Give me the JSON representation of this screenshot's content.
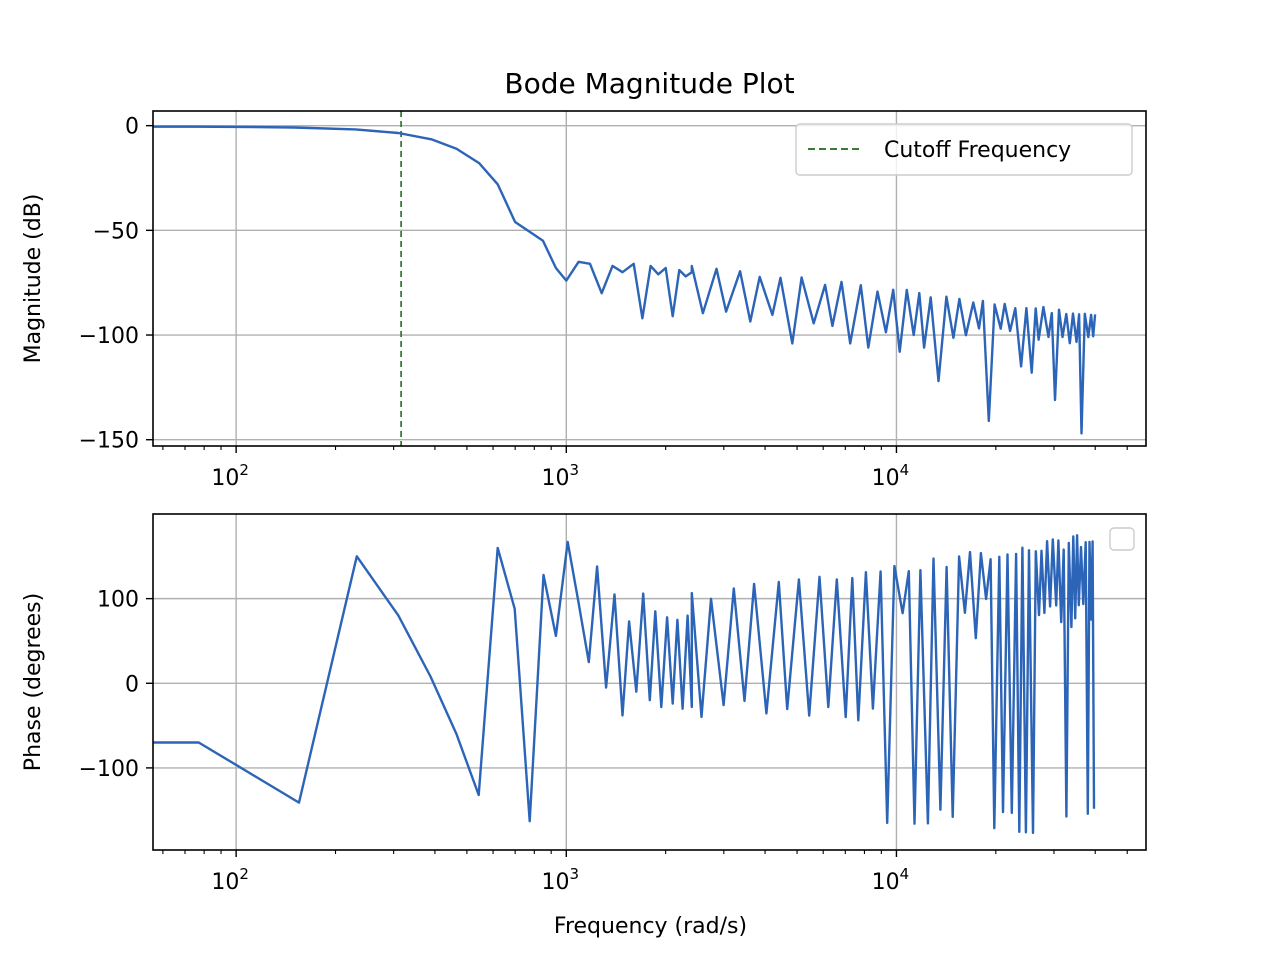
{
  "colors": {
    "series": "#2c64b7",
    "cutoff": "#3c7a3c",
    "grid": "#b0b0b0",
    "axes": "#000000"
  },
  "chart_data": [
    {
      "type": "line",
      "title": "Bode Magnitude Plot",
      "xlabel": "",
      "ylabel": "Magnitude (dB)",
      "xscale": "log",
      "xlim": [
        56,
        57000
      ],
      "ylim": [
        -153,
        7
      ],
      "yticks": [
        0,
        -50,
        -100,
        -150
      ],
      "ytick_labels": [
        "0",
        "−50",
        "−100",
        "−150"
      ],
      "xticks": [
        100,
        1000,
        10000
      ],
      "xtick_labels": [
        {
          "base": "10",
          "exp": "2"
        },
        {
          "base": "10",
          "exp": "3"
        },
        {
          "base": "10",
          "exp": "4"
        }
      ],
      "grid": true,
      "legend": {
        "placement": "upper right",
        "entries": [
          "Cutoff Frequency"
        ]
      },
      "cutoff_frequency": 316,
      "series": [
        {
          "x": [
            56,
            75,
            100,
            150,
            230,
            310,
            390,
            465,
            545,
            620,
            700,
            850,
            930,
            1000,
            1090,
            1180,
            1280,
            1380,
            1480,
            1600,
            1700,
            1800,
            1900,
            2000,
            2100,
            2200,
            2300,
            2400
          ],
          "y": [
            -0.5,
            -0.5,
            -0.6,
            -0.9,
            -1.8,
            -3.5,
            -6.5,
            -11,
            -18,
            -28,
            -46,
            -55,
            -68,
            -74,
            -65,
            -66,
            -80,
            -67,
            -70,
            -66,
            -92,
            -67,
            -71,
            -68,
            -91,
            -69,
            -72,
            -70
          ]
        }
      ],
      "dense_band": {
        "x_start": 2400,
        "x_end": 40000,
        "upper_start": -69,
        "upper_end": -92,
        "lower_start": -90,
        "lower_end": -103,
        "spike_depth_start": -95,
        "spike_depth_end": -125,
        "deep_spikes": [
          {
            "x": 4300,
            "y": -104
          },
          {
            "x": 6400,
            "y": -104
          },
          {
            "x": 7700,
            "y": -106
          },
          {
            "x": 9500,
            "y": -108
          },
          {
            "x": 11700,
            "y": -106
          },
          {
            "x": 12800,
            "y": -122
          },
          {
            "x": 18500,
            "y": -141
          },
          {
            "x": 24000,
            "y": -118
          },
          {
            "x": 30000,
            "y": -131
          },
          {
            "x": 36000,
            "y": -147
          }
        ]
      }
    },
    {
      "type": "line",
      "title": "",
      "xlabel": "Frequency (rad/s)",
      "ylabel": "Phase (degrees)",
      "xscale": "log",
      "xlim": [
        56,
        57000
      ],
      "ylim": [
        -197,
        200
      ],
      "yticks": [
        100,
        0,
        -100
      ],
      "ytick_labels": [
        "100",
        "0",
        "−100"
      ],
      "xticks": [
        100,
        1000,
        10000
      ],
      "xtick_labels": [
        {
          "base": "10",
          "exp": "2"
        },
        {
          "base": "10",
          "exp": "3"
        },
        {
          "base": "10",
          "exp": "4"
        }
      ],
      "grid": true,
      "legend": {
        "placement": "upper right",
        "entries": []
      },
      "series": [
        {
          "x": [
            56,
            77,
            155,
            232,
            310,
            388,
            465,
            543,
            620,
            698,
            775,
            853,
            930,
            1010,
            1090,
            1170,
            1240,
            1320,
            1400,
            1480,
            1550,
            1630,
            1710,
            1790,
            1860,
            1940,
            2020,
            2100,
            2170,
            2250,
            2330,
            2400
          ],
          "y": [
            -70,
            -70,
            -141,
            150,
            80,
            8,
            -60,
            -132,
            160,
            88,
            -163,
            128,
            56,
            167,
            95,
            25,
            138,
            -5,
            105,
            -38,
            73,
            -10,
            106,
            -20,
            85,
            -28,
            78,
            -24,
            75,
            -30,
            80,
            -28
          ]
        }
      ],
      "dense_band": {
        "x_start": 2400,
        "x_end": 40000,
        "top_start": 108,
        "top_end": 178,
        "bottom_start": -35,
        "bottom_end": -178,
        "bottom_at_10000": -140,
        "midline": 82,
        "full_swing_from": 8600
      }
    }
  ]
}
